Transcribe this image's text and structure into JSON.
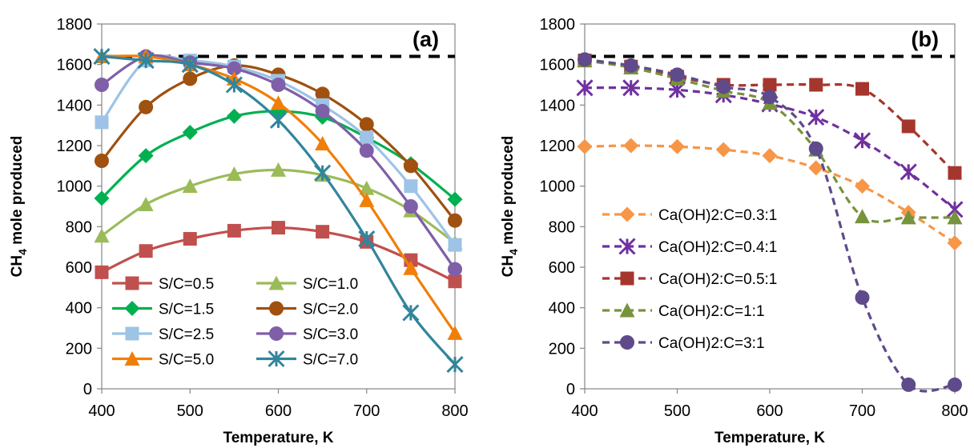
{
  "chart_data": [
    {
      "type": "line",
      "panel_label": "(a)",
      "xlabel": "Temperature, K",
      "ylabel": "CH4 mole produced",
      "xlim": [
        400,
        800
      ],
      "ylim": [
        0,
        1800
      ],
      "xticks": [
        400,
        500,
        600,
        700,
        800
      ],
      "yticks": [
        0,
        200,
        400,
        600,
        800,
        1000,
        1200,
        1400,
        1600,
        1800
      ],
      "grid": false,
      "legend_position": "bottom-left",
      "reference_line": {
        "y": 1640,
        "style": "dashed",
        "color": "#000000"
      },
      "x": [
        400,
        450,
        500,
        550,
        600,
        650,
        700,
        750,
        800
      ],
      "series": [
        {
          "name": "S/C=0.5",
          "color": "#C0504D",
          "marker": "square",
          "line": "solid",
          "values": [
            575,
            680,
            740,
            780,
            795,
            775,
            725,
            635,
            530
          ]
        },
        {
          "name": "S/C=1.0",
          "color": "#9BBB59",
          "marker": "triangle",
          "line": "solid",
          "values": [
            755,
            910,
            1000,
            1060,
            1080,
            1055,
            990,
            880,
            720
          ]
        },
        {
          "name": "S/C=1.5",
          "color": "#00B050",
          "marker": "diamond",
          "line": "solid",
          "values": [
            940,
            1150,
            1265,
            1345,
            1370,
            1340,
            1240,
            1110,
            935
          ]
        },
        {
          "name": "S/C=2.0",
          "color": "#A0500F",
          "marker": "circle",
          "line": "solid",
          "values": [
            1125,
            1390,
            1530,
            1595,
            1550,
            1455,
            1305,
            1100,
            830
          ]
        },
        {
          "name": "S/C=2.5",
          "color": "#9DC3E6",
          "marker": "square",
          "line": "solid",
          "values": [
            1315,
            1620,
            1620,
            1590,
            1520,
            1400,
            1240,
            1000,
            710
          ]
        },
        {
          "name": "S/C=3.0",
          "color": "#7F5FA8",
          "marker": "circle",
          "line": "solid",
          "values": [
            1500,
            1640,
            1610,
            1580,
            1500,
            1370,
            1175,
            900,
            590
          ]
        },
        {
          "name": "S/C=5.0",
          "color": "#F07F09",
          "marker": "triangle",
          "line": "solid",
          "values": [
            1640,
            1640,
            1600,
            1530,
            1410,
            1210,
            930,
            595,
            275
          ]
        },
        {
          "name": "S/C=7.0",
          "color": "#31859C",
          "marker": "x-star",
          "line": "solid",
          "values": [
            1640,
            1620,
            1600,
            1500,
            1325,
            1065,
            740,
            375,
            120
          ]
        }
      ]
    },
    {
      "type": "line",
      "panel_label": "(b)",
      "xlabel": "Temperature, K",
      "ylabel": "CH4 mole produced",
      "xlim": [
        400,
        800
      ],
      "ylim": [
        0,
        1800
      ],
      "xticks": [
        400,
        500,
        600,
        700,
        800
      ],
      "yticks": [
        0,
        200,
        400,
        600,
        800,
        1000,
        1200,
        1400,
        1600,
        1800
      ],
      "grid": false,
      "legend_position": "bottom-left",
      "reference_line": {
        "y": 1640,
        "style": "dashed",
        "color": "#000000"
      },
      "x": [
        400,
        450,
        500,
        550,
        600,
        650,
        700,
        750,
        800
      ],
      "series": [
        {
          "name": "Ca(OH)2:C=0.3:1",
          "color": "#F79646",
          "marker": "diamond",
          "line": "dashed",
          "values": [
            1195,
            1200,
            1195,
            1180,
            1150,
            1090,
            1000,
            870,
            720
          ]
        },
        {
          "name": "Ca(OH)2:C=0.4:1",
          "color": "#7030A0",
          "marker": "x-star",
          "line": "dashed",
          "values": [
            1485,
            1485,
            1475,
            1450,
            1405,
            1340,
            1225,
            1070,
            885
          ]
        },
        {
          "name": "Ca(OH)2:C=0.5:1",
          "color": "#A5362E",
          "marker": "square",
          "line": "dashed",
          "values": [
            1620,
            1590,
            1540,
            1500,
            1500,
            1500,
            1480,
            1295,
            1065
          ]
        },
        {
          "name": "Ca(OH)2:C=1:1",
          "color": "#77933C",
          "marker": "triangle",
          "line": "dashed",
          "values": [
            1620,
            1585,
            1530,
            1470,
            1410,
            1180,
            850,
            845,
            845
          ]
        },
        {
          "name": "Ca(OH)2:C=3:1",
          "color": "#5F4A8B",
          "marker": "circle",
          "line": "dashed",
          "values": [
            1625,
            1595,
            1550,
            1490,
            1440,
            1185,
            450,
            20,
            20
          ]
        }
      ]
    }
  ]
}
